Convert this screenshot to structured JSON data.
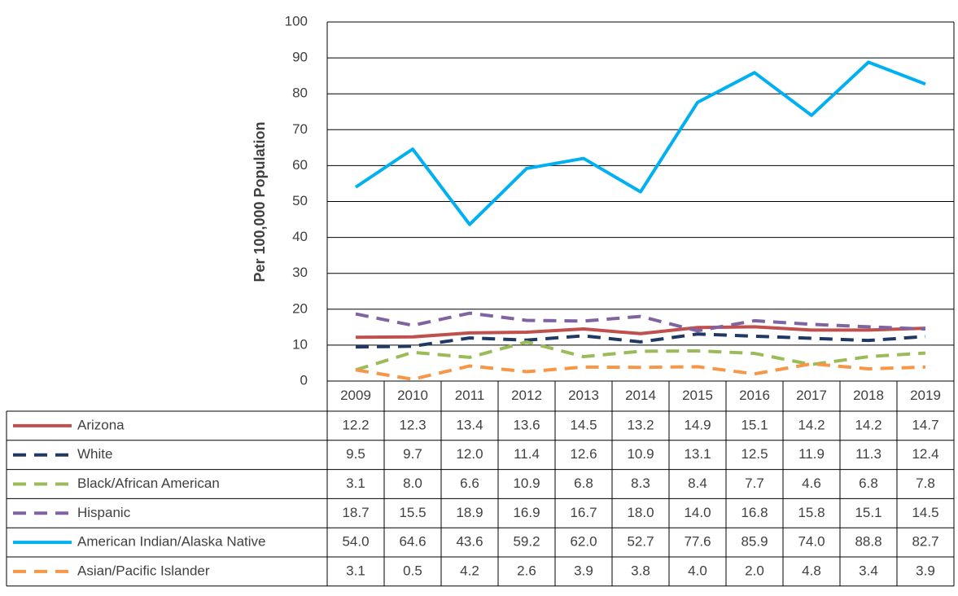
{
  "chart_data": {
    "type": "line",
    "y_label": "Per 100,000 Population",
    "categories": [
      "2009",
      "2010",
      "2011",
      "2012",
      "2013",
      "2014",
      "2015",
      "2016",
      "2017",
      "2018",
      "2019"
    ],
    "ylim": [
      0,
      100
    ],
    "yticks": [
      0,
      10,
      20,
      30,
      40,
      50,
      60,
      70,
      80,
      90,
      100
    ],
    "grid": true,
    "series": [
      {
        "name": "Arizona",
        "color": "#c0504d",
        "dashed": false,
        "values": [
          12.2,
          12.3,
          13.4,
          13.6,
          14.5,
          13.2,
          14.9,
          15.1,
          14.2,
          14.2,
          14.7
        ],
        "value_labels": [
          "12.2",
          "12.3",
          "13.4",
          "13.6",
          "14.5",
          "13.2",
          "14.9",
          "15.1",
          "14.2",
          "14.2",
          "14.7"
        ]
      },
      {
        "name": "White",
        "color": "#1f3864",
        "dashed": true,
        "values": [
          9.5,
          9.7,
          12.0,
          11.4,
          12.6,
          10.9,
          13.1,
          12.5,
          11.9,
          11.3,
          12.4
        ],
        "value_labels": [
          "9.5",
          "9.7",
          "12.0",
          "11.4",
          "12.6",
          "10.9",
          "13.1",
          "12.5",
          "11.9",
          "11.3",
          "12.4"
        ]
      },
      {
        "name": "Black/African American",
        "color": "#9bbb59",
        "dashed": true,
        "values": [
          3.1,
          8.0,
          6.6,
          10.9,
          6.8,
          8.3,
          8.4,
          7.7,
          4.6,
          6.8,
          7.8
        ],
        "value_labels": [
          "3.1",
          "8.0",
          "6.6",
          "10.9",
          "6.8",
          "8.3",
          "8.4",
          "7.7",
          "4.6",
          "6.8",
          "7.8"
        ]
      },
      {
        "name": "Hispanic",
        "color": "#8064a2",
        "dashed": true,
        "values": [
          18.7,
          15.5,
          18.9,
          16.9,
          16.7,
          18.0,
          14.0,
          16.8,
          15.8,
          15.1,
          14.5
        ],
        "value_labels": [
          "18.7",
          "15.5",
          "18.9",
          "16.9",
          "16.7",
          "18.0",
          "14.0",
          "16.8",
          "15.8",
          "15.1",
          "14.5"
        ]
      },
      {
        "name": "American Indian/Alaska Native",
        "color": "#00b0f0",
        "dashed": false,
        "values": [
          54.0,
          64.6,
          43.6,
          59.2,
          62.0,
          52.7,
          77.6,
          85.9,
          74.0,
          88.8,
          82.7
        ],
        "value_labels": [
          "54.0",
          "64.6",
          "43.6",
          "59.2",
          "62.0",
          "52.7",
          "77.6",
          "85.9",
          "74.0",
          "88.8",
          "82.7"
        ]
      },
      {
        "name": "Asian/Pacific Islander",
        "color": "#f79646",
        "dashed": true,
        "values": [
          3.1,
          0.5,
          4.2,
          2.6,
          3.9,
          3.8,
          4.0,
          2.0,
          4.8,
          3.4,
          3.9
        ],
        "value_labels": [
          "3.1",
          "0.5",
          "4.2",
          "2.6",
          "3.9",
          "3.8",
          "4.0",
          "2.0",
          "4.8",
          "3.4",
          "3.9"
        ]
      }
    ]
  }
}
